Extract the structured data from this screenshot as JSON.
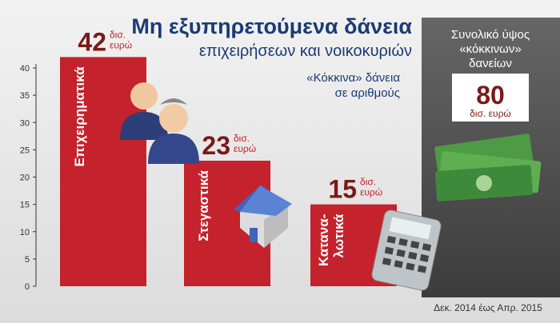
{
  "chart_data": {
    "type": "bar",
    "title": "Μη εξυπηρετούμενα δάνεια",
    "subtitle": "επιχειρήσεων και νοικοκυριών",
    "annotation": [
      "«Κόκκινα» δάνεια",
      "σε αριθμούς"
    ],
    "categories": [
      "Επιχειρηματικά",
      "Στεγαστικά",
      "Κατανα-λωτικά"
    ],
    "values": [
      42,
      23,
      15
    ],
    "value_unit": [
      "δισ.",
      "ευρώ"
    ],
    "color": "#c4222c",
    "ylim": [
      0,
      40
    ],
    "yticks": [
      0,
      5,
      10,
      15,
      20,
      25,
      30,
      35,
      40
    ],
    "total": {
      "label": [
        "Συνολικό ύψος",
        "«κόκκινων»",
        "δανείων"
      ],
      "value": 80,
      "unit": "δισ. ευρώ"
    },
    "source": "Δεκ. 2014 έως Απρ. 2015"
  }
}
